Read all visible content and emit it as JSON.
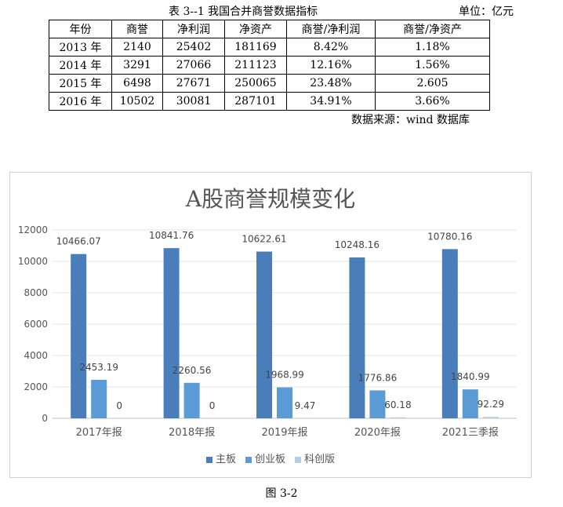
{
  "table": {
    "title": "表 3--1 我国合并商誉数据指标",
    "unit": "单位：亿元",
    "headers": [
      "年份",
      "商誉",
      "净利润",
      "净资产",
      "商誉/净利润",
      "商誉/净资产"
    ],
    "rows": [
      [
        "2013 年",
        "2140",
        "25402",
        "181169",
        "8.42%",
        "1.18%"
      ],
      [
        "2014 年",
        "3291",
        "27066",
        "211123",
        "12.16%",
        "1.56%"
      ],
      [
        "2015 年",
        "6498",
        "27671",
        "250065",
        "23.48%",
        "2.605"
      ],
      [
        "2016 年",
        "10502",
        "30081",
        "287101",
        "34.91%",
        "3.66%"
      ]
    ],
    "source": "数据来源：wind 数据库"
  },
  "chart_data": {
    "type": "bar",
    "title": "A股商誉规模变化",
    "categories": [
      "2017年报",
      "2018年报",
      "2019年报",
      "2020年报",
      "2021三季报"
    ],
    "series": [
      {
        "name": "主板",
        "color": "#4a7ebb",
        "values": [
          10466.07,
          10841.76,
          10622.61,
          10248.16,
          10780.16
        ],
        "labels": [
          "10466.07",
          "10841.76",
          "10622.61",
          "10248.16",
          "10780.16"
        ]
      },
      {
        "name": "创业板",
        "color": "#5b9bd5",
        "values": [
          2453.19,
          2260.56,
          1968.99,
          1776.86,
          1840.99
        ],
        "labels": [
          "2453.19",
          "2260.56",
          "1968.99",
          "1776.86",
          "1840.99"
        ]
      },
      {
        "name": "科创版",
        "color": "#b4cdea",
        "values": [
          0,
          0,
          9.47,
          60.18,
          92.29
        ],
        "labels": [
          "0",
          "0",
          "9.47",
          "60.18",
          "92.29"
        ]
      }
    ],
    "ylim": [
      0,
      12000
    ],
    "yticks": [
      "0",
      "2000",
      "4000",
      "6000",
      "8000",
      "10000",
      "12000"
    ],
    "grid": true,
    "legend": "bottom"
  },
  "figure_caption": "图 3-2"
}
